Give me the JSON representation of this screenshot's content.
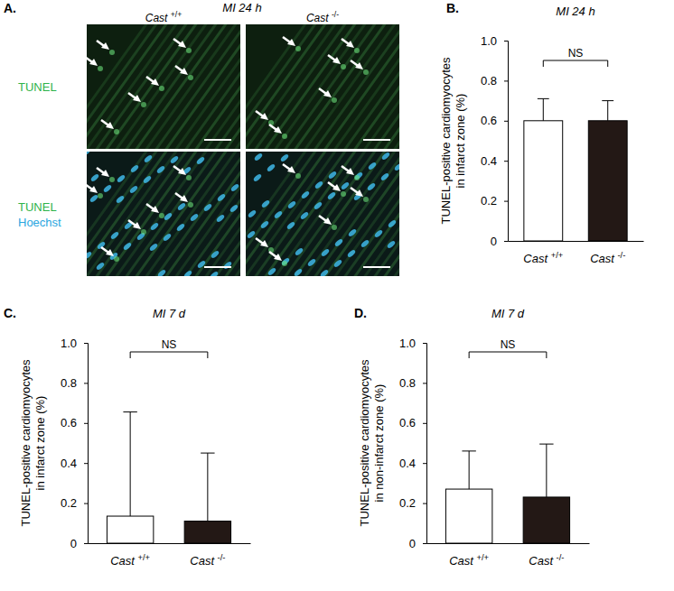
{
  "panel_a": {
    "panel": "A.",
    "title": "MI 24 h",
    "columns": [
      "Cast +/+",
      "Cast -/-"
    ],
    "rows": [
      [
        "TUNEL"
      ],
      [
        "TUNEL",
        "Hoechst"
      ]
    ]
  },
  "chart_data": [
    {
      "type": "bar",
      "panel": "B.",
      "title": "MI 24 h",
      "categories": [
        "Cast +/+",
        "Cast -/-"
      ],
      "values": [
        0.6,
        0.6
      ],
      "errors": [
        0.11,
        0.1
      ],
      "colors": [
        "#ffffff",
        "#231815"
      ],
      "ylim": [
        0,
        1
      ],
      "yticks": [
        0,
        0.2,
        0.4,
        0.6,
        0.8,
        {
          "value": 1,
          "label": "1.0"
        }
      ],
      "y_label": [
        "TUNEL-positive cardiomyocytes",
        "in infarct zone (%)"
      ],
      "annotation": "NS"
    },
    {
      "type": "bar",
      "panel": "C.",
      "title": "MI 7 d",
      "categories": [
        "Cast +/+",
        "Cast -/-"
      ],
      "values": [
        0.135,
        0.11
      ],
      "errors": [
        0.52,
        0.34
      ],
      "colors": [
        "#ffffff",
        "#231815"
      ],
      "ylim": [
        0,
        1
      ],
      "yticks": [
        0,
        0.2,
        0.4,
        0.6,
        0.8,
        {
          "value": 1,
          "label": "1.0"
        }
      ],
      "y_label": [
        "TUNEL-positive cardiomyocytes",
        "in infarct zone (%)"
      ],
      "annotation": "NS"
    },
    {
      "type": "bar",
      "panel": "D.",
      "title": "MI 7 d",
      "categories": [
        "Cast +/+",
        "Cast -/-"
      ],
      "values": [
        0.27,
        0.23
      ],
      "errors": [
        0.19,
        0.265
      ],
      "colors": [
        "#ffffff",
        "#231815"
      ],
      "ylim": [
        0,
        1
      ],
      "yticks": [
        0,
        0.2,
        0.4,
        0.6,
        0.8,
        {
          "value": 1,
          "label": "1.0"
        }
      ],
      "y_label": [
        "TUNEL-positive cardiomyocytes",
        "in non-infarct zone (%)"
      ],
      "annotation": "NS"
    }
  ]
}
